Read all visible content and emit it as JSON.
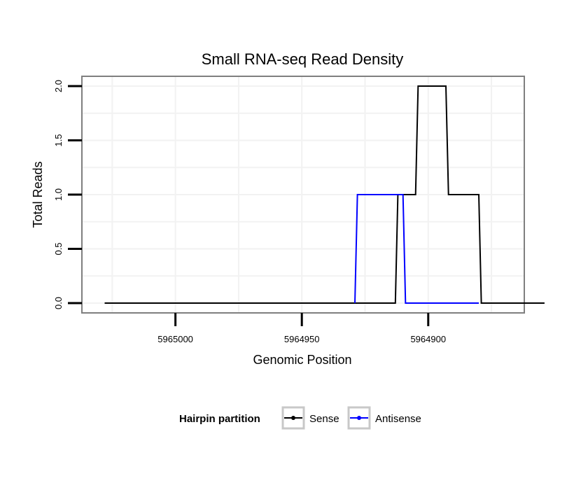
{
  "chart_data": {
    "type": "line",
    "title": "Small RNA-seq Read Density",
    "xlabel": "Genomic Position",
    "ylabel": "Total Reads",
    "x_reversed": true,
    "xlim": [
      5965037,
      5964862
    ],
    "ylim": [
      -0.09,
      2.09
    ],
    "x_ticks": [
      5965000,
      5964950,
      5964900
    ],
    "x_tick_labels": [
      "5965000",
      "5964950",
      "5964900"
    ],
    "y_ticks": [
      0,
      0.5,
      1,
      1.5,
      2
    ],
    "y_tick_labels": [
      "0.0",
      "0.5",
      "1.0",
      "1.5",
      "2.0"
    ],
    "grid": true,
    "legend": {
      "title": "Hairpin partition",
      "position": "bottom",
      "entries": [
        "Sense",
        "Antisense"
      ]
    },
    "series": [
      {
        "name": "Sense",
        "color": "#000000",
        "x": [
          5965028,
          5964913,
          5964912,
          5964905,
          5964904,
          5964893,
          5964892,
          5964880,
          5964879,
          5964854
        ],
        "y": [
          0,
          0,
          1,
          1,
          2,
          2,
          1,
          1,
          0,
          0
        ]
      },
      {
        "name": "Antisense",
        "color": "#0000ff",
        "x": [
          5964929,
          5964928,
          5964910,
          5964909,
          5964880
        ],
        "y": [
          0,
          1,
          1,
          0,
          0
        ]
      }
    ]
  }
}
